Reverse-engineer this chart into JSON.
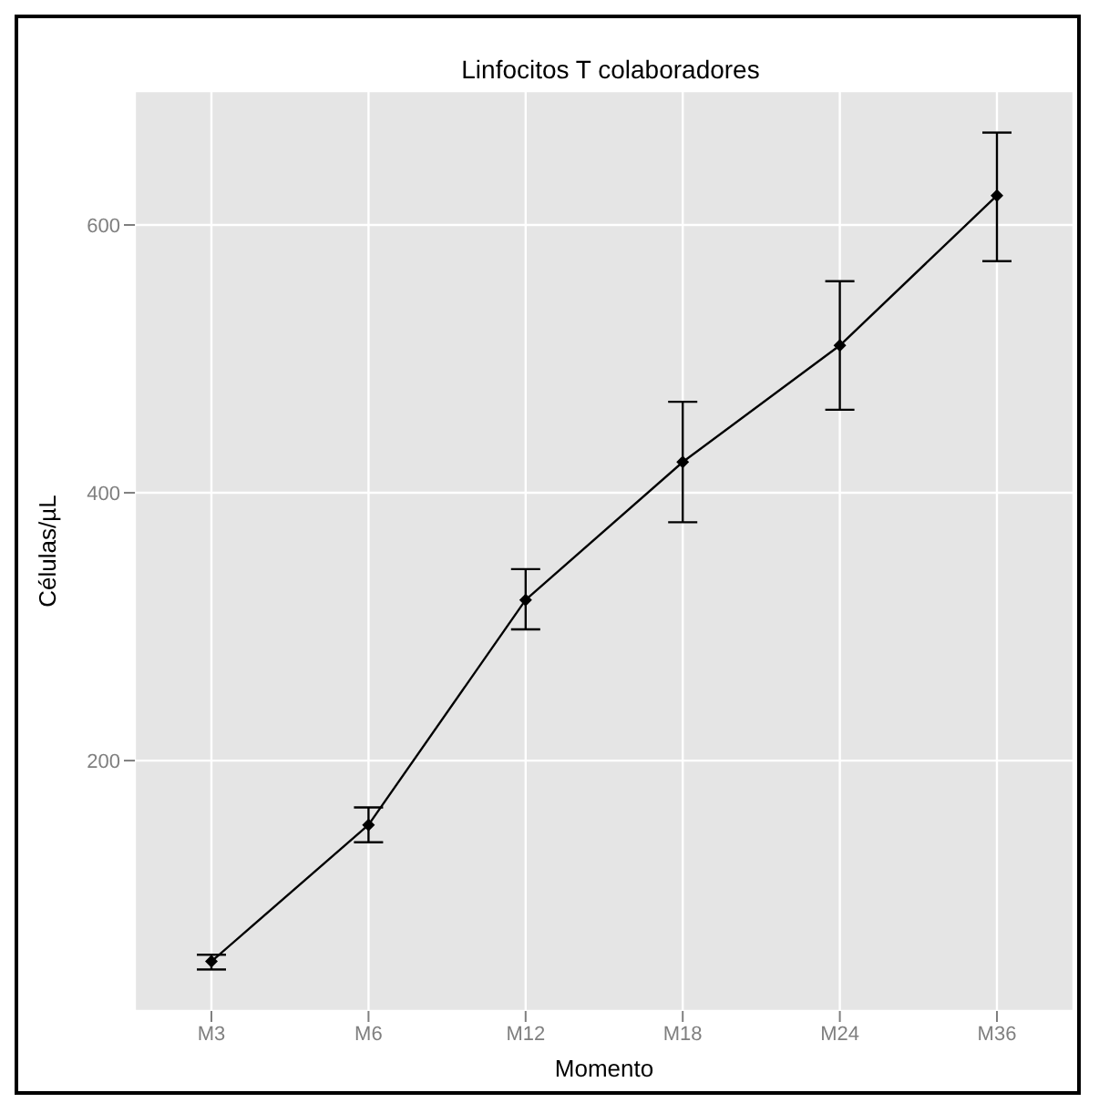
{
  "chart_data": {
    "type": "line",
    "title": "Linfocitos T colaboradores",
    "xlabel": "Momento",
    "ylabel": "Células/µL",
    "categories": [
      "M3",
      "M6",
      "M12",
      "M18",
      "M24",
      "M36"
    ],
    "series": [
      {
        "color": "#000000",
        "values": [
          50,
          152,
          320,
          423,
          510,
          622
        ],
        "errors": [
          [
            44,
            55
          ],
          [
            139,
            165
          ],
          [
            298,
            343
          ],
          [
            378,
            468
          ],
          [
            462,
            558
          ],
          [
            573,
            669
          ]
        ]
      }
    ],
    "ylim": [
      13,
      700
    ],
    "yticks": [
      200,
      400,
      600
    ],
    "grid": true,
    "marker": "diamond",
    "line_style": "solid"
  }
}
